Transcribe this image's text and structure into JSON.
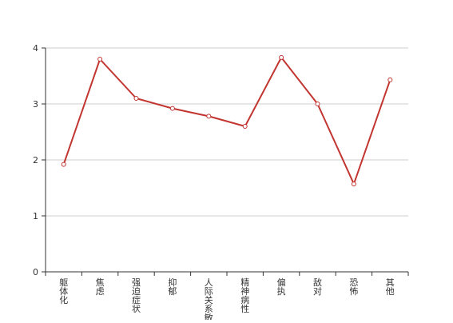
{
  "chart_data": {
    "type": "line",
    "categories": [
      "躯体化",
      "焦虑",
      "强迫症状",
      "抑郁",
      "人际关系敏感",
      "精神病性",
      "偏执",
      "敌对",
      "恐怖",
      "其他"
    ],
    "series": [
      {
        "values": [
          1.92,
          3.8,
          3.1,
          2.92,
          2.78,
          2.6,
          3.83,
          3.0,
          1.57,
          3.43
        ]
      }
    ],
    "title": "",
    "xlabel": "",
    "ylabel": "",
    "ylim": [
      0,
      4
    ],
    "yticks": [
      0,
      1,
      2,
      3,
      4
    ],
    "grid": true,
    "colors": {
      "line": "#c23531",
      "grid": "#cccccc",
      "axis": "#333333",
      "point_fill": "#ffffff"
    }
  }
}
